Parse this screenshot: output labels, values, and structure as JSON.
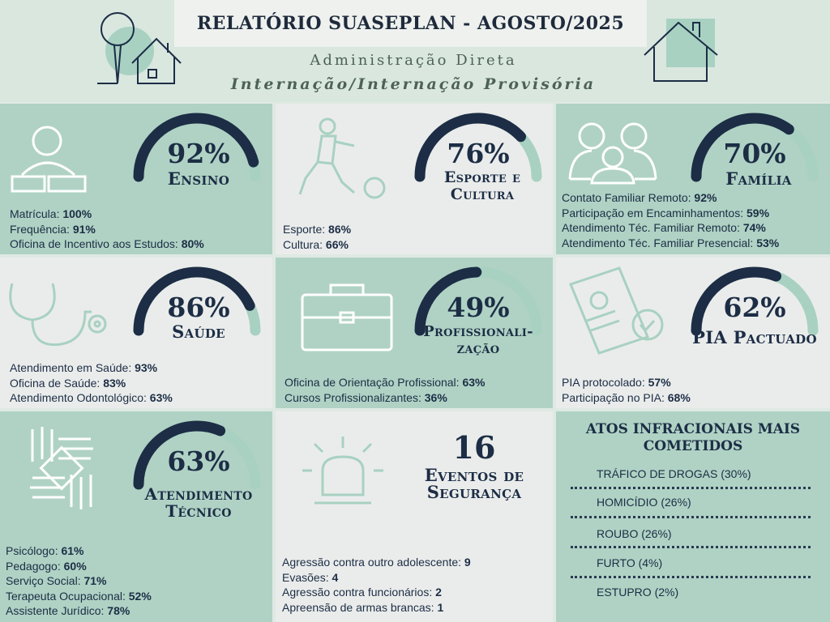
{
  "header": {
    "title": "RELATÓRIO SUASEPLAN - AGOSTO/2025",
    "subtitle1": "Administração Direta",
    "subtitle2": "Internação/Internação Provisória"
  },
  "colors": {
    "dark": "#1c2d45",
    "light_arc": "#a8d1c2",
    "green_tile": "#afd2c4",
    "white_tile": "#eaeceb"
  },
  "ensino": {
    "icon": "reading-person-icon",
    "percent": "92%",
    "value": 0.92,
    "label": "Ensino",
    "items": [
      {
        "name": "Matrícula: ",
        "value": "100%"
      },
      {
        "name": "Frequência: ",
        "value": "91%"
      },
      {
        "name": "Oficina de Incentivo aos Estudos: ",
        "value": "80%"
      }
    ]
  },
  "esporte": {
    "icon": "soccer-player-icon",
    "percent": "76%",
    "value": 0.76,
    "label": "Esporte e Cultura",
    "items": [
      {
        "name": "Esporte: ",
        "value": "86%"
      },
      {
        "name": "Cultura: ",
        "value": "66%"
      }
    ]
  },
  "familia": {
    "icon": "family-icon",
    "percent": "70%",
    "value": 0.7,
    "label": "Família",
    "items": [
      {
        "name": "Contato Familiar Remoto: ",
        "value": "92%"
      },
      {
        "name": "Participação em Encaminhamentos: ",
        "value": "59%"
      },
      {
        "name": "Atendimento Téc. Familiar Remoto: ",
        "value": "74%"
      },
      {
        "name": "Atendimento Téc. Familiar Presencial: ",
        "value": "53%"
      }
    ]
  },
  "saude": {
    "icon": "stethoscope-icon",
    "percent": "86%",
    "value": 0.86,
    "label": "Saúde",
    "items": [
      {
        "name": "Atendimento em Saúde: ",
        "value": "93%"
      },
      {
        "name": "Oficina de Saúde: ",
        "value": "83%"
      },
      {
        "name": "Atendimento Odontológico: ",
        "value": "63%"
      }
    ]
  },
  "prof": {
    "icon": "briefcase-icon",
    "percent": "49%",
    "value": 0.49,
    "label": "Profissionali-zação",
    "items": [
      {
        "name": "Oficina de Orientação Profissional: ",
        "value": "63%"
      },
      {
        "name": "Cursos Profissionalizantes: ",
        "value": "36%"
      }
    ]
  },
  "pia": {
    "icon": "document-check-icon",
    "percent": "62%",
    "value": 0.62,
    "label": "PIA Pactuado",
    "items": [
      {
        "name": "PIA protocolado: ",
        "value": "57%"
      },
      {
        "name": "Participação no PIA: ",
        "value": "68%"
      }
    ]
  },
  "atend": {
    "icon": "hands-cooperation-icon",
    "percent": "63%",
    "value": 0.63,
    "label": "Atendimento Técnico",
    "items": [
      {
        "name": "Psicólogo: ",
        "value": "61%"
      },
      {
        "name": "Pedagogo: ",
        "value": "60%"
      },
      {
        "name": "Serviço Social: ",
        "value": "71%"
      },
      {
        "name": "Terapeuta Ocupacional: ",
        "value": "52%"
      },
      {
        "name": "Assistente Jurídico: ",
        "value": "78%"
      }
    ]
  },
  "seguranca": {
    "icon": "siren-icon",
    "count": "16",
    "label": "Eventos de Segurança",
    "items": [
      {
        "name": "Agressão contra outro adolescente: ",
        "value": "9"
      },
      {
        "name": "Evasões: ",
        "value": "4"
      },
      {
        "name": "Agressão contra funcionários: ",
        "value": "2"
      },
      {
        "name": "Apreensão de armas brancas: ",
        "value": "1"
      }
    ]
  },
  "atos": {
    "title": "ATOS INFRACIONAIS MAIS COMETIDOS",
    "items": [
      "TRÁFICO DE DROGAS (30%)",
      "HOMICÍDIO (26%)",
      "ROUBO (26%)",
      "FURTO (4%)",
      "ESTUPRO (2%)"
    ]
  }
}
